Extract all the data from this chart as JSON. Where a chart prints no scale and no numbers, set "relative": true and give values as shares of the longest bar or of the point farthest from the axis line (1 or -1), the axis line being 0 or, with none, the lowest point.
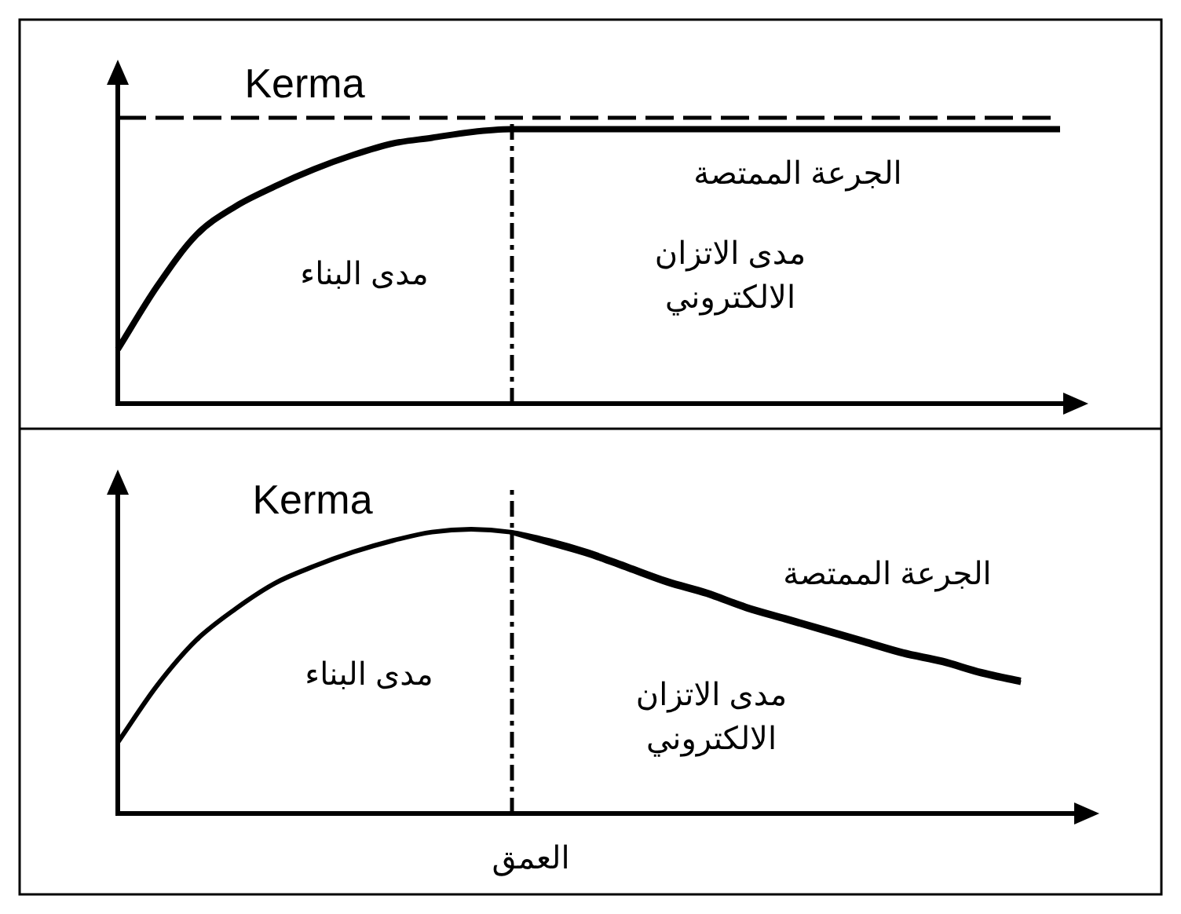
{
  "chart_data": [
    {
      "type": "line",
      "relative": true,
      "categories": [
        null,
        null,
        null,
        null,
        null,
        null,
        null,
        null,
        null,
        null,
        null,
        null,
        null,
        null,
        null,
        null,
        null,
        null,
        null,
        null,
        null,
        null,
        null,
        null,
        null
      ],
      "series": [
        {
          "name": "Kerma",
          "color": "#000000",
          "line_style": "dashed",
          "values": [
            1,
            1,
            1,
            1,
            1,
            1,
            1,
            1,
            1,
            1,
            1,
            1,
            1,
            1,
            1,
            1,
            1,
            1,
            1,
            1,
            1,
            1,
            1,
            1,
            1
          ]
        },
        {
          "name": "الجرعة الممتصة",
          "color": "#000000",
          "line_style": "solid",
          "values": [
            0.19,
            0.41,
            0.59,
            0.69,
            0.76,
            0.82,
            0.87,
            0.91,
            0.93,
            0.95,
            0.96,
            0.96,
            0.96,
            0.96,
            0.96,
            0.96,
            0.96,
            0.96,
            0.96,
            0.96,
            0.96,
            0.96,
            0.96,
            0.96,
            0.96
          ]
        }
      ],
      "annotations": [
        "مدى البناء",
        "مدى الاتزان الالكتروني"
      ]
    },
    {
      "type": "line",
      "relative": true,
      "xlabel": "العمق",
      "categories": [
        null,
        null,
        null,
        null,
        null,
        null,
        null,
        null,
        null,
        null,
        null,
        null,
        null,
        null,
        null,
        null,
        null,
        null,
        null,
        null,
        null,
        null,
        null,
        null,
        null
      ],
      "series": [
        {
          "color": "#000000",
          "line_style": "solid",
          "values": [
            null,
            null,
            null,
            null,
            null,
            null,
            null,
            null,
            null,
            null,
            0.99,
            0.95,
            0.91,
            0.86,
            0.81,
            0.77,
            0.72,
            0.68,
            0.64,
            0.6,
            0.56,
            0.53,
            0.49,
            0.46,
            null
          ]
        },
        {
          "name": "الجرعة الممتصة",
          "color": "#000000",
          "line_style": "solid",
          "values": [
            0.25,
            0.45,
            0.61,
            0.72,
            0.81,
            0.87,
            0.92,
            0.96,
            0.99,
            1,
            0.99,
            0.96,
            0.92,
            0.87,
            0.82,
            0.78,
            0.73,
            0.69,
            0.65,
            0.61,
            0.57,
            0.54,
            0.5,
            0.47,
            null
          ]
        }
      ],
      "annotations": [
        "Kerma",
        "مدى البناء",
        "مدى الاتزان الالكتروني"
      ]
    }
  ]
}
